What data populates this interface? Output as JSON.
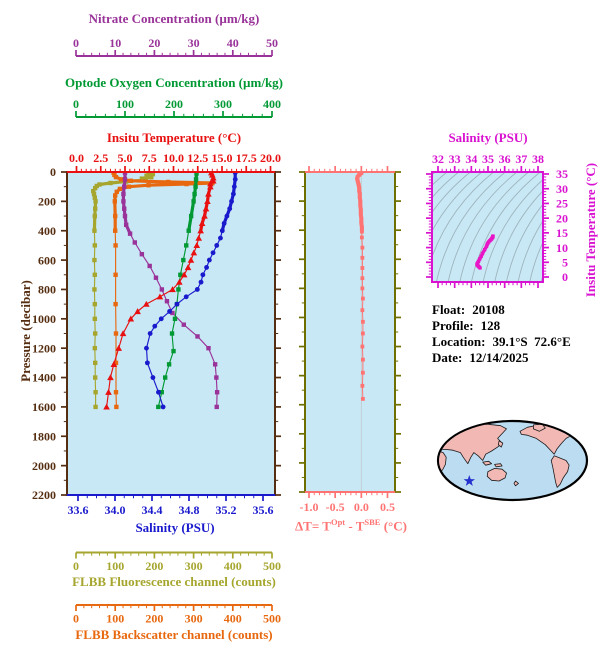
{
  "float_info": {
    "rows": [
      {
        "label": "Float:",
        "value": "20108"
      },
      {
        "label": "Profile:",
        "value": "128"
      },
      {
        "label": "Location:",
        "value": "39.1°S  72.6°E"
      },
      {
        "label": "Date:",
        "value": "12/14/2025"
      }
    ]
  },
  "axes": {
    "nitrate": {
      "title": "Nitrate Concentration (µm/kg)",
      "color": "#993399",
      "range": [
        0,
        50
      ],
      "major_ticks": [
        0,
        10,
        20,
        30,
        40,
        50
      ],
      "minor_step": 2
    },
    "oxygen": {
      "title": "Optode Oxygen Concentration (µm/kg)",
      "color": "#009933",
      "range": [
        0,
        400
      ],
      "major_ticks": [
        0,
        100,
        200,
        300,
        400
      ],
      "minor_step": 20
    },
    "temperature": {
      "title": "Insitu Temperature (°C)",
      "color": "#e81010",
      "range": [
        0,
        20
      ],
      "major_ticks": [
        "0.0",
        "2.5",
        "5.0",
        "7.5",
        "10.0",
        "12.5",
        "15.0",
        "17.5",
        "20.0"
      ],
      "minor_step": 0.5
    },
    "pressure": {
      "title": "Pressure (decibar)",
      "color": "#552d10",
      "range": [
        0,
        2200
      ],
      "major_ticks": [
        0,
        200,
        400,
        600,
        800,
        1000,
        1200,
        1400,
        1600,
        1800,
        2000,
        2200
      ],
      "minor_step": 100
    },
    "salinity": {
      "title": "Salinity (PSU)",
      "color": "#1a1acd",
      "range": [
        33.6,
        35.6
      ],
      "major_ticks": [
        "33.6",
        "34.0",
        "34.4",
        "34.8",
        "35.2",
        "35.6"
      ],
      "minor_step": 0.1
    },
    "fluorescence": {
      "title": "FLBB Fluorescence channel (counts)",
      "color": "#a6a62e",
      "range": [
        0,
        500
      ],
      "major_ticks": [
        0,
        100,
        200,
        300,
        400,
        500
      ],
      "minor_step": 20
    },
    "backscatter": {
      "title": "FLBB Backscatter channel (counts)",
      "color": "#e8680f",
      "range": [
        0,
        500
      ],
      "major_ticks": [
        0,
        100,
        200,
        300,
        400,
        500
      ],
      "minor_step": 20
    },
    "delta_t": {
      "label_p1": "ΔT= T",
      "label_sup1": "Opt",
      "label_p2": " - T",
      "label_sup2": "SBE",
      "label_p3": " (°C)",
      "color": "#ff7473",
      "border_color": "#6f6f00",
      "range": [
        -1.0,
        0.5
      ],
      "major_ticks": [
        "-1.0",
        "-0.5",
        "0.0",
        "0.5"
      ],
      "minor_step": 0.1
    },
    "ts_salinity": {
      "title": "Salinity (PSU)",
      "color": "#d911d0",
      "range": [
        32,
        38
      ],
      "major_ticks": [
        32,
        33,
        34,
        35,
        36,
        37,
        38
      ],
      "minor_step": 0.25
    },
    "ts_temperature": {
      "title": "Insitu Temperature (°C)",
      "color": "#d911d0",
      "range": [
        0,
        35
      ],
      "major_ticks": [
        0,
        5,
        10,
        15,
        20,
        25,
        30,
        35
      ],
      "minor_step": 1
    }
  },
  "chart_data": [
    {
      "id": "profiles",
      "type": "line",
      "background": "#c9e8f6",
      "y_axis": {
        "label": "Pressure (decibar)",
        "range": [
          0,
          2200
        ]
      },
      "series": [
        {
          "name": "FLBB Fluorescence channel",
          "units": "counts",
          "axis": "fluorescence",
          "color": "#a6a62e",
          "marker": "square",
          "pressure": [
            5,
            15,
            25,
            35,
            45,
            55,
            65,
            75,
            85,
            95,
            110,
            130,
            150,
            175,
            200,
            250,
            300,
            400,
            500,
            600,
            700,
            800,
            900,
            1000,
            1100,
            1200,
            1300,
            1400,
            1500,
            1600
          ],
          "values": [
            185,
            196,
            180,
            192,
            168,
            178,
            128,
            88,
            60,
            53,
            49,
            44,
            46,
            48,
            50,
            49,
            48,
            47,
            48,
            47,
            48,
            47,
            48,
            48,
            49,
            48,
            49,
            49,
            50,
            50
          ]
        },
        {
          "name": "FLBB Backscatter channel",
          "units": "counts",
          "axis": "backscatter",
          "color": "#e8680f",
          "marker": "square",
          "pressure": [
            5,
            20,
            35,
            50,
            60,
            68,
            75,
            82,
            90,
            100,
            115,
            135,
            160,
            200,
            300,
            400,
            500,
            700,
            900,
            1100,
            1300,
            1500,
            1600
          ],
          "values": [
            96,
            98,
            102,
            115,
            140,
            235,
            348,
            282,
            185,
            135,
            112,
            104,
            100,
            99,
            100,
            100,
            101,
            101,
            101,
            102,
            102,
            102,
            103
          ]
        },
        {
          "name": "Nitrate Concentration",
          "units": "µm/kg",
          "axis": "nitrate",
          "color": "#993399",
          "marker": "square",
          "pressure": [
            5,
            50,
            100,
            150,
            200,
            250,
            300,
            360,
            420,
            480,
            560,
            640,
            720,
            800,
            880,
            960,
            1040,
            1120,
            1200,
            1310,
            1400,
            1500,
            1600
          ],
          "values": [
            12.5,
            12.5,
            12.3,
            12.1,
            12.1,
            12.3,
            12.5,
            12.8,
            13.8,
            15.0,
            16.8,
            18.8,
            20.4,
            21.9,
            23.2,
            24.6,
            27.5,
            31.0,
            33.8,
            35.5,
            35.8,
            36.0,
            35.9
          ]
        },
        {
          "name": "Optode Oxygen Concentration",
          "units": "µm/kg",
          "axis": "oxygen",
          "color": "#009933",
          "marker": "square",
          "pressure": [
            10,
            50,
            100,
            150,
            200,
            300,
            400,
            500,
            600,
            700,
            800,
            900,
            1000,
            1100,
            1220,
            1310,
            1400,
            1500,
            1600
          ],
          "values": [
            246,
            245,
            244,
            242,
            240,
            235,
            230,
            225,
            219,
            213,
            209,
            206,
            202,
            196,
            199,
            190,
            182,
            175,
            168
          ]
        },
        {
          "name": "Insitu Temperature",
          "units": "°C",
          "axis": "temperature",
          "color": "#e81010",
          "marker": "triangle",
          "pressure": [
            5,
            20,
            40,
            60,
            80,
            100,
            150,
            200,
            250,
            300,
            350,
            400,
            450,
            500,
            550,
            600,
            650,
            700,
            750,
            800,
            850,
            900,
            950,
            1000,
            1100,
            1200,
            1310,
            1400,
            1500,
            1600
          ],
          "values": [
            13.9,
            14.0,
            14.1,
            14.1,
            13.8,
            13.8,
            13.6,
            13.5,
            13.35,
            13.2,
            12.95,
            12.8,
            12.6,
            12.4,
            12.1,
            11.8,
            11.5,
            11.1,
            10.6,
            9.9,
            8.6,
            7.2,
            6.3,
            5.6,
            4.8,
            4.35,
            3.85,
            3.5,
            3.3,
            3.1
          ]
        },
        {
          "name": "Salinity",
          "units": "PSU",
          "axis": "salinity",
          "color": "#1a1acd",
          "marker": "circle",
          "pressure": [
            5,
            50,
            100,
            150,
            200,
            250,
            300,
            350,
            400,
            450,
            500,
            550,
            600,
            650,
            700,
            750,
            800,
            850,
            900,
            950,
            1000,
            1050,
            1100,
            1200,
            1300,
            1400,
            1500,
            1600
          ],
          "values": [
            35.3,
            35.3,
            35.29,
            35.28,
            35.26,
            35.24,
            35.21,
            35.18,
            35.16,
            35.14,
            35.1,
            35.06,
            35.02,
            34.99,
            34.95,
            34.93,
            34.89,
            34.77,
            34.67,
            34.59,
            34.5,
            34.43,
            34.38,
            34.34,
            34.35,
            34.41,
            34.47,
            34.52
          ]
        }
      ]
    },
    {
      "id": "delta_t",
      "type": "line",
      "background": "#c9e8f6",
      "series": [
        {
          "name": "ΔT = T Optode minus T SBE",
          "units": "°C",
          "color": "#ff7473",
          "marker": "square",
          "pressure": [
            8,
            20,
            32,
            45,
            60,
            75,
            90,
            110,
            130,
            150,
            175,
            200,
            230,
            260,
            290,
            320,
            350,
            380,
            410,
            450,
            520,
            590,
            660,
            730,
            800,
            870,
            950,
            1030,
            1110,
            1200,
            1290,
            1380,
            1470,
            1560
          ],
          "values": [
            0.0,
            -0.04,
            -0.07,
            -0.08,
            -0.07,
            -0.06,
            -0.05,
            -0.04,
            -0.04,
            -0.03,
            -0.03,
            -0.02,
            -0.02,
            -0.01,
            -0.01,
            0.0,
            0.0,
            0.01,
            0.01,
            0.01,
            0.02,
            0.02,
            0.02,
            0.02,
            0.02,
            0.03,
            0.02,
            0.03,
            0.03,
            0.02,
            0.03,
            0.03,
            0.02,
            0.03
          ]
        }
      ]
    },
    {
      "id": "ts_diagram",
      "type": "line",
      "background": "#c9e8f6",
      "isopycnal_contours": {
        "color": "#9db4bd",
        "count": 18
      },
      "series": [
        {
          "name": "T-S profile",
          "color": "#e816c6",
          "marker": "square",
          "points_s_t": [
            [
              35.3,
              13.9
            ],
            [
              35.29,
              13.7
            ],
            [
              35.28,
              13.5
            ],
            [
              35.24,
              13.2
            ],
            [
              35.21,
              12.9
            ],
            [
              35.16,
              12.6
            ],
            [
              35.1,
              12.3
            ],
            [
              35.04,
              11.9
            ],
            [
              34.99,
              11.5
            ],
            [
              34.95,
              11.1
            ],
            [
              34.91,
              10.4
            ],
            [
              34.8,
              9.3
            ],
            [
              34.67,
              8.0
            ],
            [
              34.59,
              7.0
            ],
            [
              34.5,
              6.1
            ],
            [
              34.43,
              5.3
            ],
            [
              34.38,
              4.8
            ],
            [
              34.34,
              4.4
            ],
            [
              34.35,
              4.1
            ],
            [
              34.41,
              3.7
            ],
            [
              34.47,
              3.4
            ],
            [
              34.52,
              3.1
            ]
          ]
        }
      ]
    },
    {
      "id": "location_map",
      "type": "map",
      "ocean_color": "#bcdcf2",
      "land_color": "#f2b9b4",
      "outline_color": "#000000",
      "marker": {
        "shape": "star",
        "color": "#2431cc",
        "x_frac": 0.21,
        "y_frac": 0.76
      }
    }
  ]
}
